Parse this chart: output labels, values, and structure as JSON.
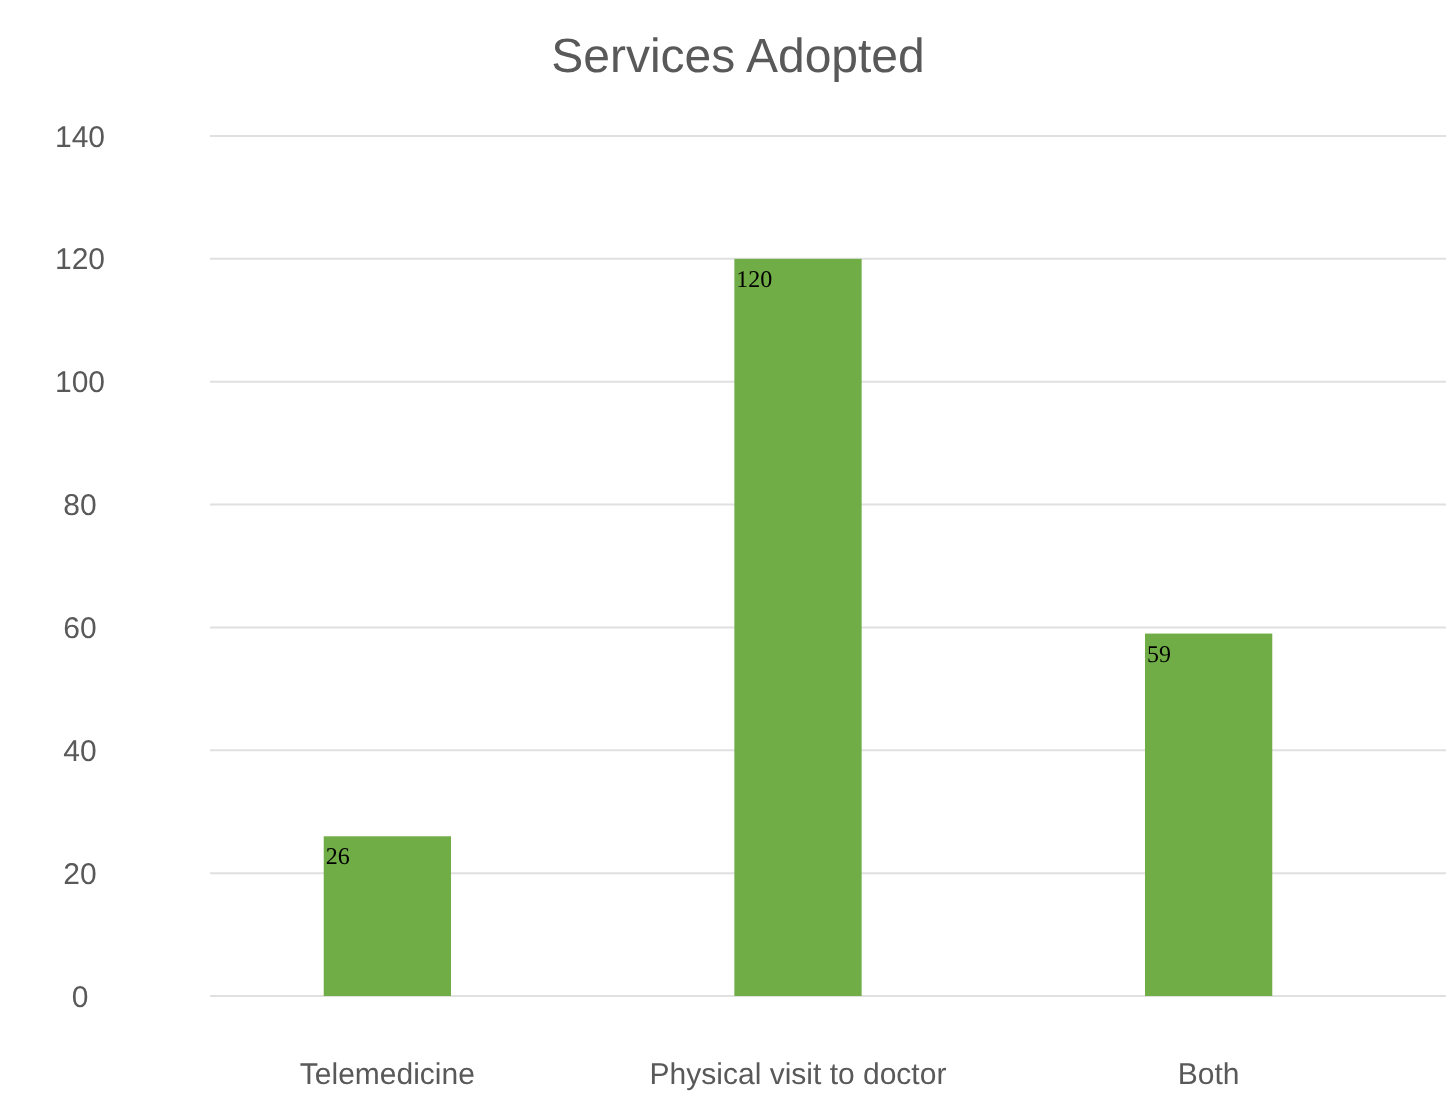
{
  "chart_data": {
    "type": "bar",
    "title": "Services Adopted",
    "categories": [
      "Telemedicine",
      "Physical visit to doctor",
      "Both"
    ],
    "values": [
      26,
      120,
      59
    ],
    "color": "#70ad47",
    "ylim": [
      0,
      140
    ],
    "yticks": [
      0,
      20,
      40,
      60,
      80,
      100,
      120,
      140
    ],
    "grid": "y",
    "data_labels": true
  }
}
